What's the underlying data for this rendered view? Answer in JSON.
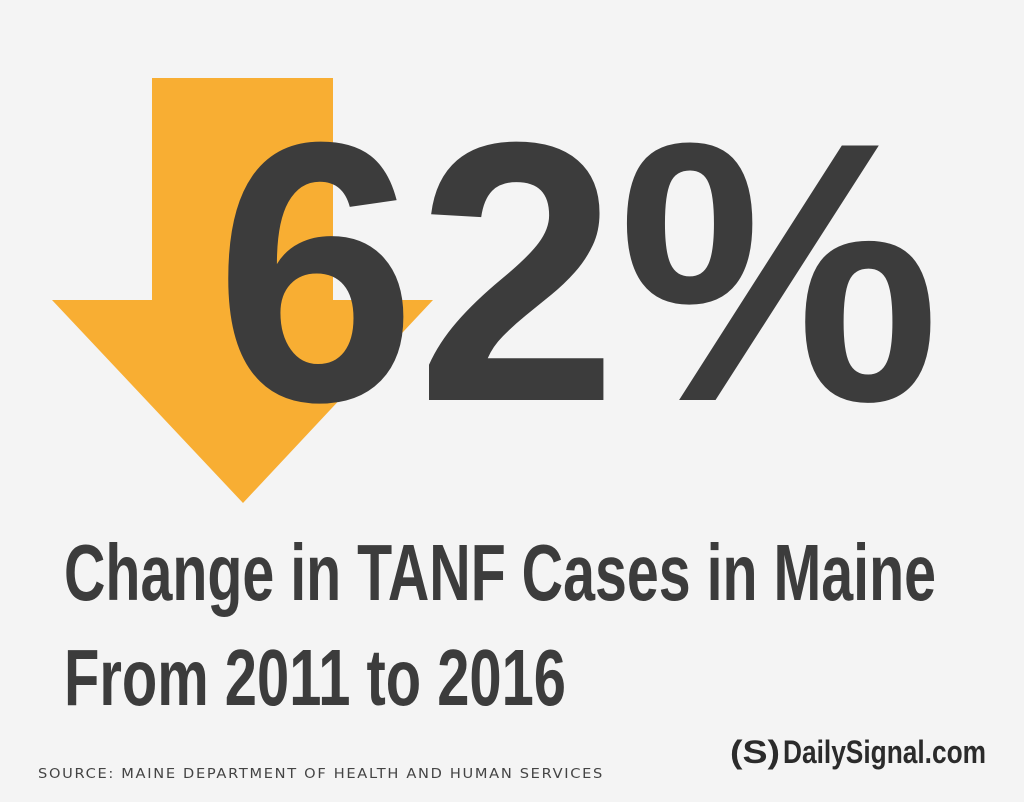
{
  "headline": "62%",
  "subtitle": [
    "Change in TANF Cases in Maine",
    "From 2011 to 2016"
  ],
  "source": "SOURCE: MAINE DEPARTMENT OF HEALTH AND HUMAN SERVICES",
  "logo": {
    "mark": "(S)",
    "text": "DailySignal.com"
  }
}
